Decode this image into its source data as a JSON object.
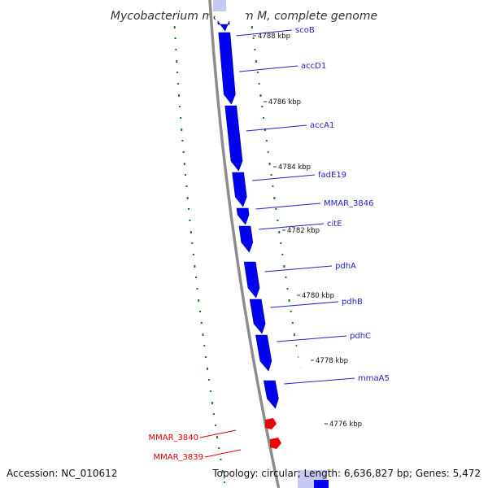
{
  "title": "Mycobacterium marinum M, complete genome",
  "footer": {
    "accession": "Accession: NC_010612",
    "topology": "Topology: circular; Length: 6,636,827 bp; Genes: 5,472"
  },
  "colors": {
    "backbone": "#8c8c8c",
    "gene_forward": "#0000f0",
    "gene_label": "#2222cc",
    "pseudo_label": "#dd0000",
    "pseudo": "#ee0000",
    "tick": "#1a7a1a",
    "cog_purple": "#7b68d8",
    "cog_cyan": "#19e6e6",
    "cog_olive": "#6e8a2a",
    "cog_light": "#c8c8f5"
  },
  "kbp_ticks": [
    "4788 kbp",
    "4786 kbp",
    "4784 kbp",
    "4782 kbp",
    "4780 kbp",
    "4778 kbp",
    "4776 kbp"
  ],
  "genes": [
    {
      "name": "scoB",
      "cog": "cog_purple"
    },
    {
      "name": "accD1",
      "cog": "cog_purple"
    },
    {
      "name": "accA1",
      "cog": "cog_purple"
    },
    {
      "name": "fadE19",
      "cog": "cog_purple"
    },
    {
      "name": "MMAR_3846",
      "cog": "cog_purple"
    },
    {
      "name": "citE",
      "cog": "cog_cyan"
    },
    {
      "name": "pdhA",
      "cog": "cog_cyan"
    },
    {
      "name": "pdhB",
      "cog": "cog_cyan"
    },
    {
      "name": "pdhC",
      "cog": "cog_cyan"
    },
    {
      "name": "mmaA5",
      "cog": "cog_olive"
    }
  ],
  "pseudogenes": [
    {
      "name": "MMAR_3840"
    },
    {
      "name": "MMAR_3839"
    }
  ]
}
